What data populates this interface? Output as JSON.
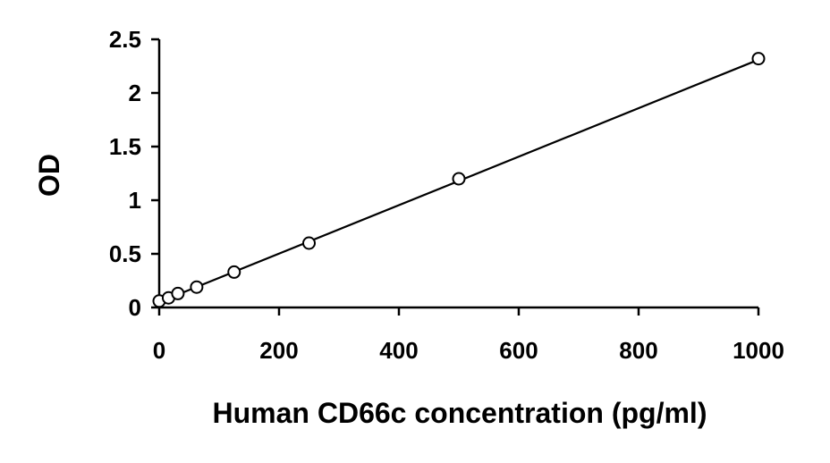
{
  "chart_data": {
    "type": "scatter",
    "title": "",
    "xlabel": "Human CD66c concentration (pg/ml)",
    "ylabel": "OD",
    "xlim": [
      0,
      1000
    ],
    "ylim": [
      0,
      2.5
    ],
    "x_ticks": [
      0,
      200,
      400,
      600,
      800,
      1000
    ],
    "x_tick_labels": [
      "0",
      "200",
      "400",
      "600",
      "800",
      "1000"
    ],
    "y_ticks": [
      0,
      0.5,
      1,
      1.5,
      2,
      2.5
    ],
    "y_tick_labels": [
      "0",
      "0.5",
      "1",
      "1.5",
      "2",
      "2.5"
    ],
    "grid": false,
    "legend": "none",
    "marker": "open-circle",
    "series": [
      {
        "x": [
          0,
          15.6,
          31.2,
          62.5,
          125,
          250,
          500,
          1000
        ],
        "y": [
          0.06,
          0.09,
          0.13,
          0.19,
          0.33,
          0.6,
          1.2,
          2.32
        ]
      }
    ],
    "trendline": {
      "type": "linear",
      "x": [
        0,
        1000
      ],
      "y": [
        0.05,
        2.31
      ]
    },
    "colors": {
      "axis": "#000000",
      "marker": "#000000",
      "line": "#000000",
      "background": "#ffffff"
    }
  }
}
